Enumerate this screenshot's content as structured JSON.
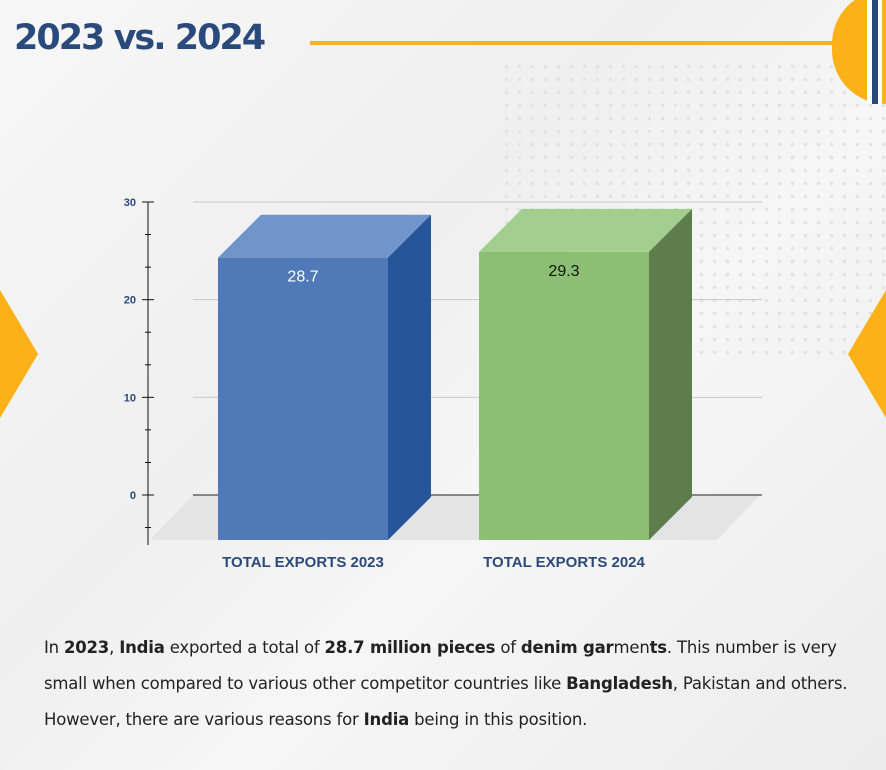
{
  "header": {
    "title": "2023 vs. 2024"
  },
  "colors": {
    "accent": "#fbb117",
    "navy": "#2b4a7c",
    "bar2023": "#5079b8",
    "bar2024": "#8bc074"
  },
  "chart_data": {
    "type": "bar",
    "style": "3d",
    "categories": [
      "TOTAL EXPORTS 2023",
      "TOTAL EXPORTS 2024"
    ],
    "values": [
      28.7,
      29.3
    ],
    "data_labels": [
      "28.7",
      "29.3"
    ],
    "yticks": [
      "0",
      "10",
      "20",
      "30"
    ],
    "ylim": [
      0,
      30
    ],
    "grid": true,
    "legend": "none"
  },
  "paragraph": [
    {
      "t": "In ",
      "b": false
    },
    {
      "t": "2023",
      "b": true
    },
    {
      "t": ", ",
      "b": false
    },
    {
      "t": "India",
      "b": true
    },
    {
      "t": " exported a total of ",
      "b": false
    },
    {
      "t": "28.7 million pieces",
      "b": true
    },
    {
      "t": " of ",
      "b": false
    },
    {
      "t": "denim gar",
      "b": true
    },
    {
      "t": "men",
      "b": false
    },
    {
      "t": "ts",
      "b": true
    },
    {
      "t": ". This number is very small when compared to various other competitor countries like ",
      "b": false
    },
    {
      "t": "Bangladesh",
      "b": true
    },
    {
      "t": ", Pakistan and others. However, there are various reasons for ",
      "b": false
    },
    {
      "t": "India",
      "b": true
    },
    {
      "t": " being in this position.",
      "b": false
    }
  ]
}
